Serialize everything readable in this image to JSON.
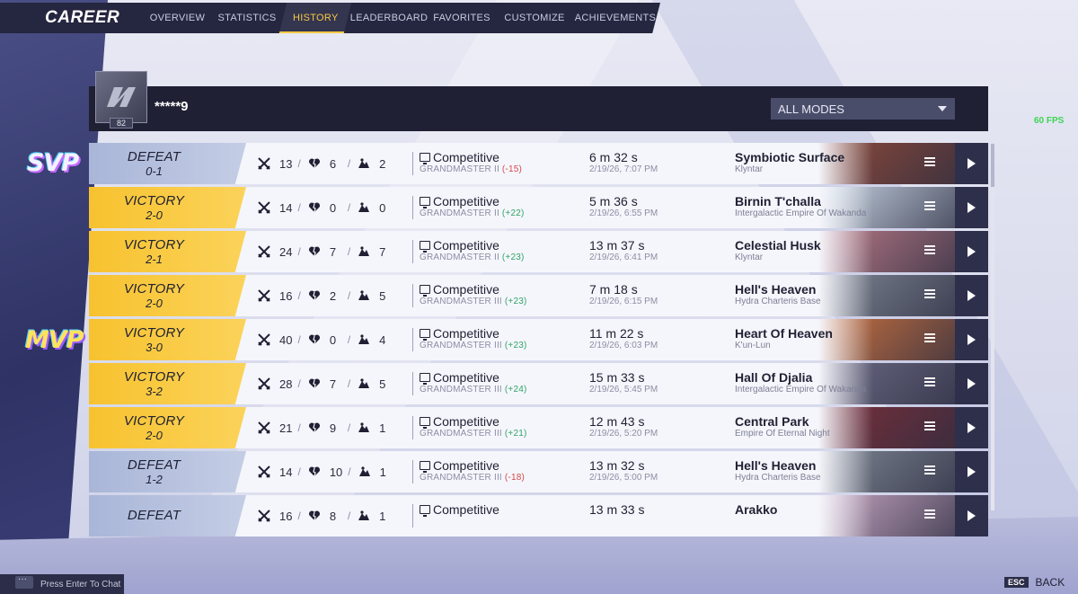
{
  "nav": {
    "title": "CAREER",
    "tabs": [
      {
        "label": "OVERVIEW"
      },
      {
        "label": "STATISTICS"
      },
      {
        "label": "HISTORY",
        "active": true
      },
      {
        "label": "LEADERBOARD"
      },
      {
        "label": "FAVORITES"
      },
      {
        "label": "CUSTOMIZE"
      },
      {
        "label": "ACHIEVEMENTS"
      }
    ]
  },
  "profile": {
    "username": "*****9",
    "level": "82"
  },
  "filter": {
    "mode": "ALL MODES"
  },
  "fps": "60 FPS",
  "badges": {
    "svp": "SVP",
    "mvp": "MVP"
  },
  "matches": [
    {
      "result": "DEFEAT",
      "score": "0-1",
      "kills": "13",
      "deaths": "6",
      "assists": "2",
      "mode": "Competitive",
      "rank": "GRANDMASTER II",
      "delta": "(-15)",
      "duration": "6 m 32 s",
      "date": "2/19/26, 7:07 PM",
      "map": "Symbiotic Surface",
      "region": "Klyntar"
    },
    {
      "result": "VICTORY",
      "score": "2-0",
      "kills": "14",
      "deaths": "0",
      "assists": "0",
      "mode": "Competitive",
      "rank": "GRANDMASTER II",
      "delta": "(+22)",
      "duration": "5 m 36 s",
      "date": "2/19/26, 6:55 PM",
      "map": "Birnin T'challa",
      "region": "Intergalactic Empire Of Wakanda"
    },
    {
      "result": "VICTORY",
      "score": "2-1",
      "kills": "24",
      "deaths": "7",
      "assists": "7",
      "mode": "Competitive",
      "rank": "GRANDMASTER II",
      "delta": "(+23)",
      "duration": "13 m 37 s",
      "date": "2/19/26, 6:41 PM",
      "map": "Celestial Husk",
      "region": "Klyntar"
    },
    {
      "result": "VICTORY",
      "score": "2-0",
      "kills": "16",
      "deaths": "2",
      "assists": "5",
      "mode": "Competitive",
      "rank": "GRANDMASTER III",
      "delta": "(+23)",
      "duration": "7 m 18 s",
      "date": "2/19/26, 6:15 PM",
      "map": "Hell's Heaven",
      "region": "Hydra Charteris Base"
    },
    {
      "result": "VICTORY",
      "score": "3-0",
      "kills": "40",
      "deaths": "0",
      "assists": "4",
      "mode": "Competitive",
      "rank": "GRANDMASTER III",
      "delta": "(+23)",
      "duration": "11 m 22 s",
      "date": "2/19/26, 6:03 PM",
      "map": "Heart Of Heaven",
      "region": "K'un-Lun"
    },
    {
      "result": "VICTORY",
      "score": "3-2",
      "kills": "28",
      "deaths": "7",
      "assists": "5",
      "mode": "Competitive",
      "rank": "GRANDMASTER III",
      "delta": "(+24)",
      "duration": "15 m 33 s",
      "date": "2/19/26, 5:45 PM",
      "map": "Hall Of Djalia",
      "region": "Intergalactic Empire Of Wakanda"
    },
    {
      "result": "VICTORY",
      "score": "2-0",
      "kills": "21",
      "deaths": "9",
      "assists": "1",
      "mode": "Competitive",
      "rank": "GRANDMASTER III",
      "delta": "(+21)",
      "duration": "12 m 43 s",
      "date": "2/19/26, 5:20 PM",
      "map": "Central Park",
      "region": "Empire Of Eternal Night"
    },
    {
      "result": "DEFEAT",
      "score": "1-2",
      "kills": "14",
      "deaths": "10",
      "assists": "1",
      "mode": "Competitive",
      "rank": "GRANDMASTER III",
      "delta": "(-18)",
      "duration": "13 m 32 s",
      "date": "2/19/26, 5:00 PM",
      "map": "Hell's Heaven",
      "region": "Hydra Charteris Base"
    },
    {
      "result": "DEFEAT",
      "score": "",
      "kills": "16",
      "deaths": "8",
      "assists": "1",
      "mode": "Competitive",
      "rank": "",
      "delta": "",
      "duration": "13 m 33 s",
      "date": "",
      "map": "Arakko",
      "region": ""
    }
  ],
  "map_art_colors": [
    "#8e4a3a",
    "#c9d6e4",
    "#b97a86",
    "#7f8794",
    "#c9713f",
    "#6c6b86",
    "#7a2f3a",
    "#7f8794",
    "#c7a6c2"
  ],
  "footer": {
    "chat": "Press Enter To Chat",
    "esc": "ESC",
    "back": "BACK"
  }
}
